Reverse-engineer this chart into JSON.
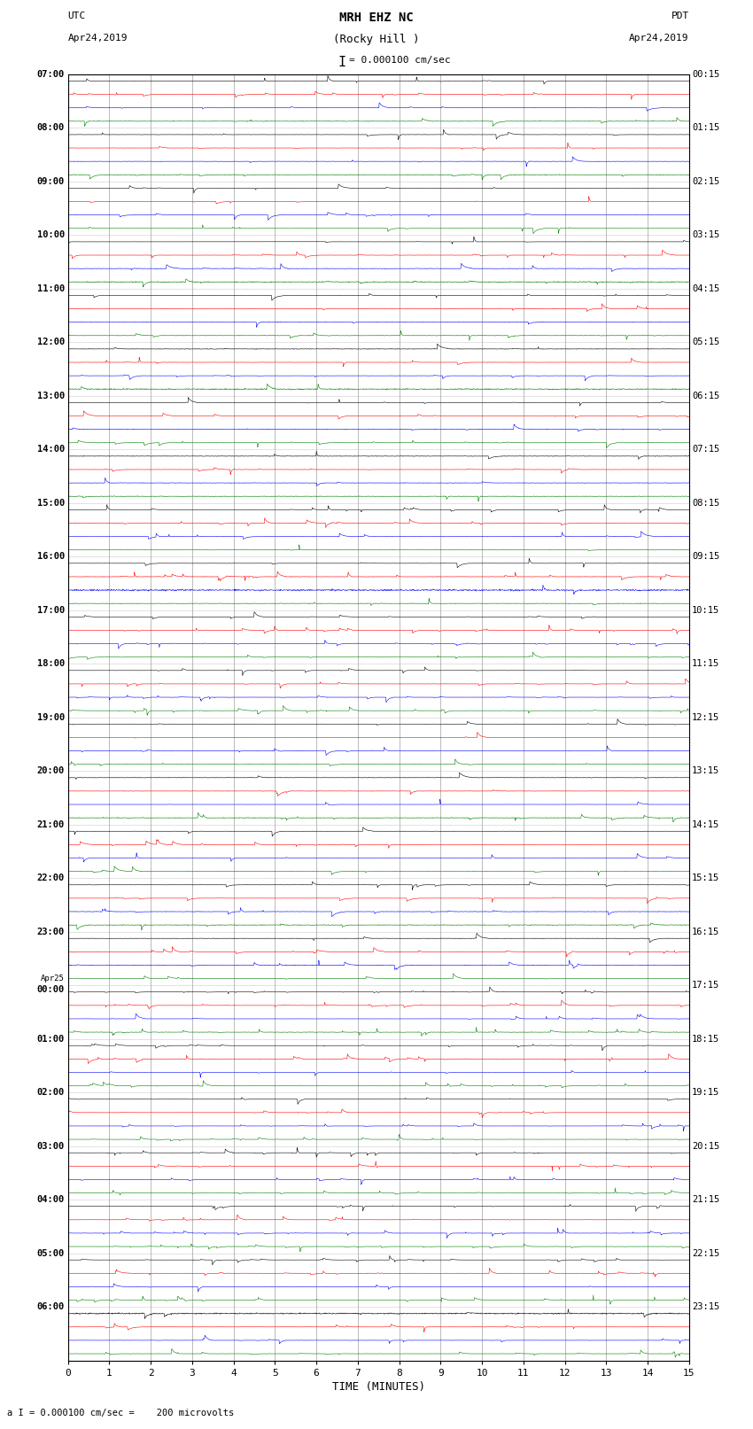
{
  "title_line1": "MRH EHZ NC",
  "title_line2": "(Rocky Hill )",
  "scale_label": "= 0.000100 cm/sec",
  "scale_bracket": "I",
  "left_header_line1": "UTC",
  "left_header_line2": "Apr24,2019",
  "right_header_line1": "PDT",
  "right_header_line2": "Apr24,2019",
  "bottom_label": "TIME (MINUTES)",
  "footnote": "a I = 0.000100 cm/sec =    200 microvolts",
  "xlim": [
    0,
    15
  ],
  "xticks": [
    0,
    1,
    2,
    3,
    4,
    5,
    6,
    7,
    8,
    9,
    10,
    11,
    12,
    13,
    14,
    15
  ],
  "left_times": [
    "07:00",
    "08:00",
    "09:00",
    "10:00",
    "11:00",
    "12:00",
    "13:00",
    "14:00",
    "15:00",
    "16:00",
    "17:00",
    "18:00",
    "19:00",
    "20:00",
    "21:00",
    "22:00",
    "23:00",
    "00:00",
    "01:00",
    "02:00",
    "03:00",
    "04:00",
    "05:00",
    "06:00"
  ],
  "apr25_hour_idx": 17,
  "right_times": [
    "00:15",
    "01:15",
    "02:15",
    "03:15",
    "04:15",
    "05:15",
    "06:15",
    "07:15",
    "08:15",
    "09:15",
    "10:15",
    "11:15",
    "12:15",
    "13:15",
    "14:15",
    "15:15",
    "16:15",
    "17:15",
    "18:15",
    "19:15",
    "20:15",
    "21:15",
    "22:15",
    "23:15"
  ],
  "trace_colors": [
    "black",
    "red",
    "blue",
    "green"
  ],
  "n_hours": 24,
  "traces_per_hour": 4,
  "background_color": "white",
  "grid_color": "#777777",
  "figsize": [
    8.5,
    16.13
  ],
  "dpi": 100
}
